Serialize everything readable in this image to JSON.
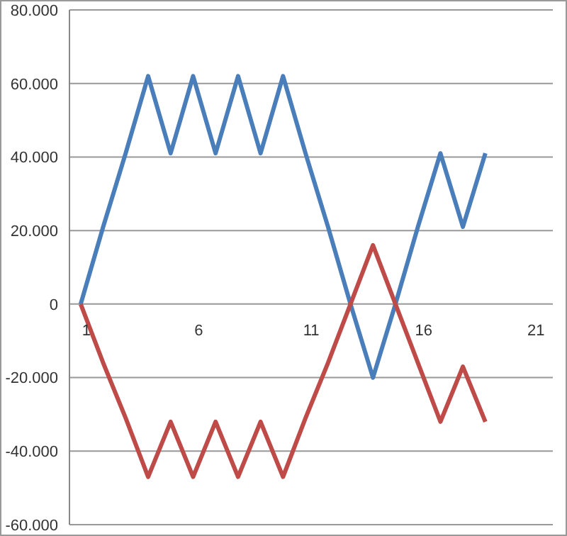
{
  "chart_data": {
    "type": "line",
    "x": [
      1,
      2,
      3,
      4,
      5,
      6,
      7,
      8,
      9,
      10,
      11,
      12,
      13,
      14,
      15,
      16,
      17,
      18,
      19
    ],
    "series": [
      {
        "color": "#4a7ebb",
        "values": [
          0,
          21000,
          41000,
          62000,
          41000,
          62000,
          41000,
          62000,
          41000,
          62000,
          41000,
          21000,
          0,
          -20000,
          0,
          21000,
          41000,
          21000,
          41000
        ]
      },
      {
        "color": "#be4b48",
        "values": [
          0,
          -16000,
          -31000,
          -47000,
          -32000,
          -47000,
          -32000,
          -47000,
          -32000,
          -47000,
          -31000,
          -16000,
          0,
          16000,
          0,
          -16000,
          -32000,
          -17000,
          -32000
        ]
      }
    ],
    "xlim": [
      0.5,
      22
    ],
    "xticks": [
      1,
      6,
      11,
      16,
      21
    ],
    "ylim": [
      -60000,
      80000
    ],
    "yticks": [
      {
        "value": -60000,
        "label": "-60.000"
      },
      {
        "value": -40000,
        "label": "-40.000"
      },
      {
        "value": -20000,
        "label": "-20.000"
      },
      0,
      {
        "value": 20000,
        "label": "20.000"
      },
      {
        "value": 40000,
        "label": "40.000"
      },
      {
        "value": 60000,
        "label": "60.000"
      },
      {
        "value": 80000,
        "label": "80.000"
      }
    ],
    "grid": "y",
    "marker": "none",
    "line_style": "solid"
  }
}
